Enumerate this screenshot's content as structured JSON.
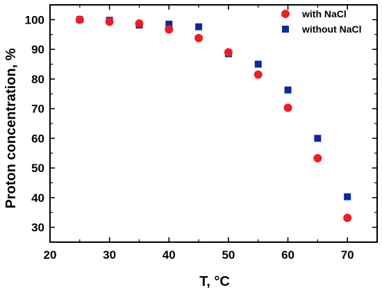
{
  "chart_data": {
    "type": "scatter",
    "xlabel": "T, °C",
    "ylabel": "Proton concentration, %",
    "xlim": [
      20,
      75
    ],
    "ylim": [
      25,
      105
    ],
    "xticks": [
      20,
      30,
      40,
      50,
      60,
      70
    ],
    "yticks": [
      30,
      40,
      50,
      60,
      70,
      80,
      90,
      100
    ],
    "legend_position": "top-right",
    "grid": false,
    "series": [
      {
        "name": "with NaCl",
        "marker": "circle",
        "color": "#ee1c25",
        "x": [
          25,
          30,
          35,
          40,
          45,
          50,
          55,
          60,
          65,
          70
        ],
        "y": [
          100,
          99.3,
          98.7,
          96.7,
          93.8,
          89.0,
          81.5,
          70.3,
          53.3,
          33.2
        ]
      },
      {
        "name": "without NaCl",
        "marker": "square",
        "color": "#0b2aa0",
        "x": [
          25,
          30,
          35,
          40,
          45,
          50,
          55,
          60,
          65,
          70
        ],
        "y": [
          100,
          99.8,
          98.2,
          98.5,
          97.6,
          88.5,
          85.0,
          76.3,
          60.0,
          40.3
        ]
      }
    ]
  }
}
